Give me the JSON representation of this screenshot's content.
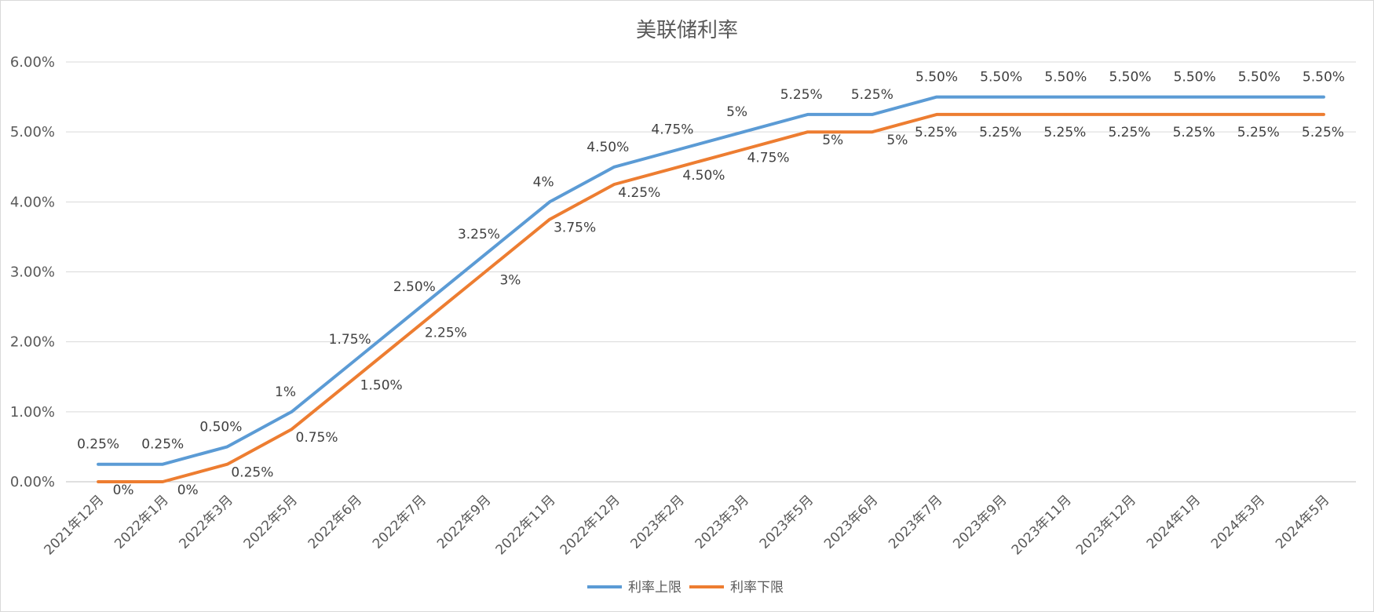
{
  "chart_data": {
    "type": "line",
    "title": "美联储利率",
    "xlabel": "",
    "ylabel": "",
    "ylim": [
      0,
      6
    ],
    "yticks": [
      "0.00%",
      "1.00%",
      "2.00%",
      "3.00%",
      "4.00%",
      "5.00%",
      "6.00%"
    ],
    "grid": true,
    "legend": "bottom",
    "categories": [
      "2021年12月",
      "2022年1月",
      "2022年3月",
      "2022年5月",
      "2022年6月",
      "2022年7月",
      "2022年9月",
      "2022年11月",
      "2022年12月",
      "2023年2月",
      "2023年3月",
      "2023年5月",
      "2023年6月",
      "2023年7月",
      "2023年9月",
      "2023年11月",
      "2023年12月",
      "2024年1月",
      "2024年3月",
      "2024年5月"
    ],
    "series": [
      {
        "name": "利率上限",
        "color": "#5b9bd5",
        "values": [
          0.25,
          0.25,
          0.5,
          1,
          1.75,
          2.5,
          3.25,
          4,
          4.5,
          4.75,
          5,
          5.25,
          5.25,
          5.5,
          5.5,
          5.5,
          5.5,
          5.5,
          5.5,
          5.5
        ],
        "labels": [
          "0.25%",
          "0.25%",
          "0.50%",
          "1%",
          "1.75%",
          "2.50%",
          "3.25%",
          "4%",
          "4.50%",
          "4.75%",
          "5%",
          "5.25%",
          "5.25%",
          "5.50%",
          "5.50%",
          "5.50%",
          "5.50%",
          "5.50%",
          "5.50%",
          "5.50%"
        ]
      },
      {
        "name": "利率下限",
        "color": "#ed7d31",
        "values": [
          0,
          0,
          0.25,
          0.75,
          1.5,
          2.25,
          3,
          3.75,
          4.25,
          4.5,
          4.75,
          5,
          5,
          5.25,
          5.25,
          5.25,
          5.25,
          5.25,
          5.25,
          5.25
        ],
        "labels": [
          "0%",
          "0%",
          "0.25%",
          "0.75%",
          "1.50%",
          "2.25%",
          "3%",
          "3.75%",
          "4.25%",
          "4.50%",
          "4.75%",
          "5%",
          "5%",
          "5.25%",
          "5.25%",
          "5.25%",
          "5.25%",
          "5.25%",
          "5.25%",
          "5.25%"
        ]
      }
    ]
  }
}
